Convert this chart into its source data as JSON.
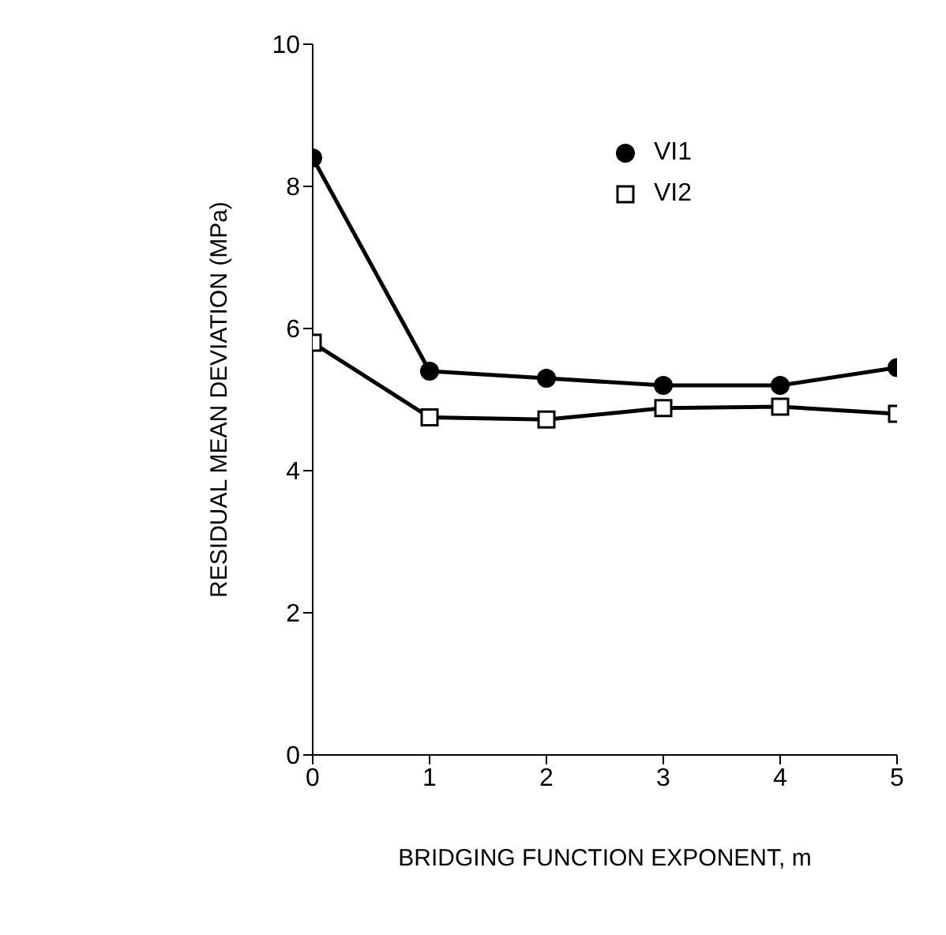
{
  "chart_data": {
    "type": "line",
    "xlabel": "BRIDGING FUNCTION EXPONENT, m",
    "ylabel": "RESIDUAL MEAN DEVIATION (MPa)",
    "x": [
      0,
      1,
      2,
      3,
      4,
      5
    ],
    "series": [
      {
        "name": "VI1",
        "color": "#000000",
        "marker": "circle",
        "values": [
          8.4,
          5.4,
          5.3,
          5.2,
          5.2,
          5.45
        ]
      },
      {
        "name": "VI2",
        "color": "#000000",
        "marker": "square",
        "values": [
          5.8,
          4.75,
          4.72,
          4.88,
          4.9,
          4.8
        ]
      }
    ],
    "xlim": [
      0,
      5
    ],
    "xticks": [
      0,
      1,
      2,
      3,
      4,
      5
    ],
    "ylim": [
      0,
      10
    ],
    "yticks": [
      0,
      2,
      4,
      6,
      8,
      10
    ],
    "grid": false,
    "legend": "top right",
    "line_style": "solid"
  }
}
